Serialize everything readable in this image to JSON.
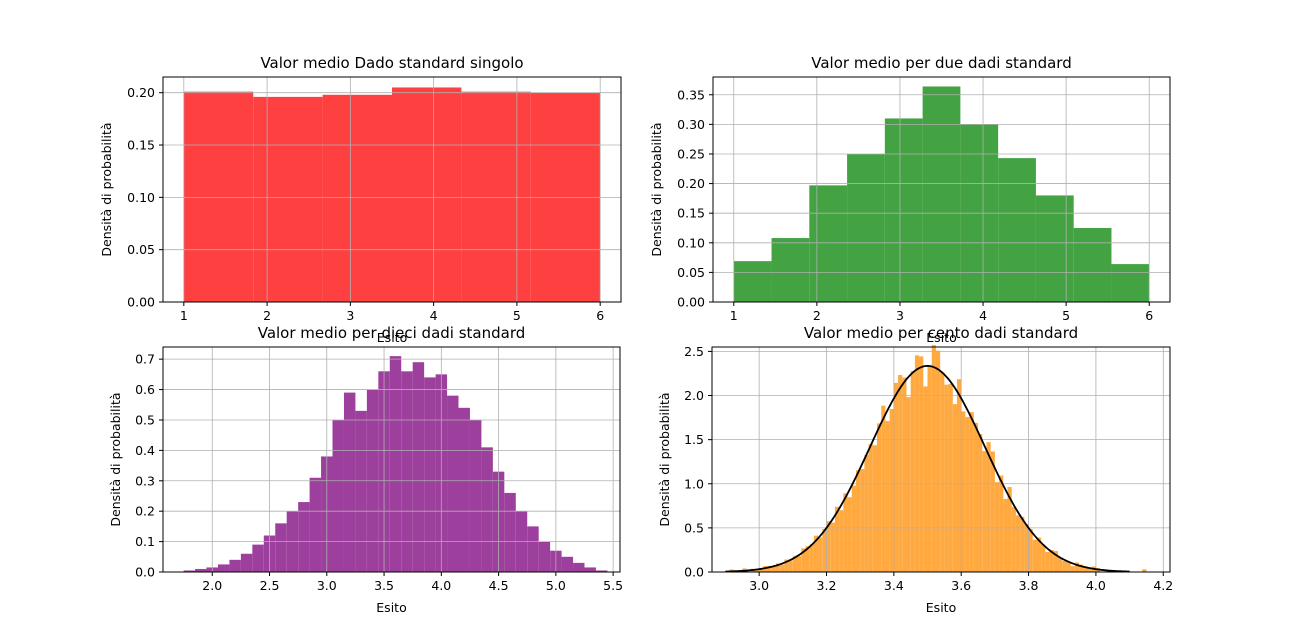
{
  "chart_data": [
    {
      "type": "bar",
      "title": "Valor medio Dado standard singolo",
      "xlabel": "Esito",
      "ylabel": "Densità di probabilità",
      "xlim": [
        0.75,
        6.25
      ],
      "ylim": [
        0,
        0.215
      ],
      "xticks": [
        1,
        2,
        3,
        4,
        5,
        6
      ],
      "yticks": [
        0.0,
        0.05,
        0.1,
        0.15,
        0.2
      ],
      "ytick_labels": [
        "0.00",
        "0.05",
        "0.10",
        "0.15",
        "0.20"
      ],
      "grid": true,
      "color": "#ff4041",
      "bin_edges": [
        1.0,
        1.8333,
        2.6667,
        3.5,
        4.3333,
        5.1667,
        6.0
      ],
      "values": [
        0.201,
        0.196,
        0.198,
        0.205,
        0.201,
        0.2
      ]
    },
    {
      "type": "bar",
      "title": "Valor medio per due dadi standard",
      "xlabel": "Esito",
      "ylabel": "Densità di probabilità",
      "xlim": [
        0.75,
        6.25
      ],
      "ylim": [
        0,
        0.38
      ],
      "xticks": [
        1,
        2,
        3,
        4,
        5,
        6
      ],
      "yticks": [
        0.0,
        0.05,
        0.1,
        0.15,
        0.2,
        0.25,
        0.3,
        0.35
      ],
      "ytick_labels": [
        "0.00",
        "0.05",
        "0.10",
        "0.15",
        "0.20",
        "0.25",
        "0.30",
        "0.35"
      ],
      "grid": true,
      "color": "#43a343",
      "bin_edges": [
        1.0,
        1.4545,
        1.9091,
        2.3636,
        2.8182,
        3.2727,
        3.7273,
        4.1818,
        4.6364,
        5.0909,
        5.5455,
        6.0
      ],
      "values": [
        0.069,
        0.108,
        0.197,
        0.25,
        0.31,
        0.364,
        0.3,
        0.243,
        0.18,
        0.125,
        0.064
      ]
    },
    {
      "type": "bar",
      "title": "Valor medio per dieci dadi standard",
      "xlabel": "Esito",
      "ylabel": "Densità di probabilità",
      "xlim": [
        1.57,
        5.56
      ],
      "ylim": [
        0,
        0.74
      ],
      "xticks": [
        2.0,
        2.5,
        3.0,
        3.5,
        4.0,
        4.5,
        5.0,
        5.5
      ],
      "ytick_labels": [
        "0.0",
        "0.1",
        "0.2",
        "0.3",
        "0.4",
        "0.5",
        "0.6",
        "0.7"
      ],
      "yticks": [
        0.0,
        0.1,
        0.2,
        0.3,
        0.4,
        0.5,
        0.6,
        0.7
      ],
      "grid": true,
      "color": "#9d3f9d",
      "bin_start": 1.75,
      "bin_width": 0.1,
      "values": [
        0.005,
        0.01,
        0.015,
        0.025,
        0.04,
        0.06,
        0.09,
        0.12,
        0.16,
        0.2,
        0.23,
        0.31,
        0.38,
        0.5,
        0.59,
        0.53,
        0.6,
        0.66,
        0.71,
        0.66,
        0.69,
        0.64,
        0.65,
        0.58,
        0.54,
        0.5,
        0.41,
        0.33,
        0.26,
        0.2,
        0.15,
        0.1,
        0.07,
        0.05,
        0.03,
        0.015,
        0.005
      ]
    },
    {
      "type": "bar",
      "title": "Valor medio per cento dadi standard",
      "xlabel": "Esito",
      "ylabel": "Densità di probabilità",
      "xlim": [
        2.86,
        4.22
      ],
      "ylim": [
        0,
        2.55
      ],
      "xticks": [
        3.0,
        3.2,
        3.4,
        3.6,
        3.8,
        4.0,
        4.2
      ],
      "yticks": [
        0.0,
        0.5,
        1.0,
        1.5,
        2.0,
        2.5
      ],
      "ytick_labels": [
        "0.0",
        "0.5",
        "1.0",
        "1.5",
        "2.0",
        "2.5"
      ],
      "grid": true,
      "color": "#ffa940",
      "bin_start": 2.9,
      "bin_end": 4.15,
      "bin_count": 100,
      "curve": {
        "type": "normal",
        "mean": 3.5,
        "std": 0.1708,
        "x_range": [
          2.9,
          4.1
        ],
        "color": "#000000"
      }
    }
  ]
}
